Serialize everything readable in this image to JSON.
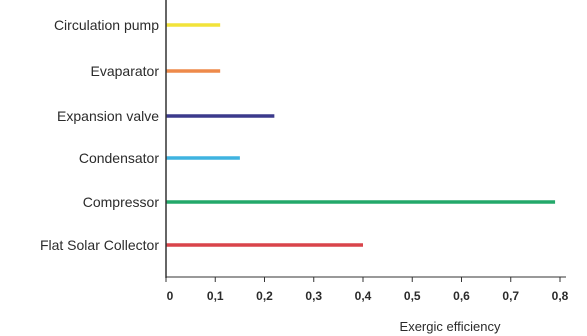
{
  "chart_data": {
    "type": "bar",
    "orientation": "horizontal",
    "categories": [
      "Circulation pump",
      "Evaparator",
      "Expansion valve",
      "Condensator",
      "Compressor",
      "Flat Solar Collector"
    ],
    "values": [
      0.11,
      0.11,
      0.22,
      0.15,
      0.79,
      0.4
    ],
    "colors": [
      "#f2e33a",
      "#ee8a4a",
      "#3b3a8c",
      "#3fb3e0",
      "#23a86a",
      "#d9444a"
    ],
    "xlabel": "Exergic efficiency",
    "xlim": [
      0,
      0.8
    ],
    "xticks": [
      "0",
      "0,1",
      "0,2",
      "0,3",
      "0,4",
      "0,5",
      "0,6",
      "0,7",
      "0,8"
    ],
    "grid": false
  }
}
